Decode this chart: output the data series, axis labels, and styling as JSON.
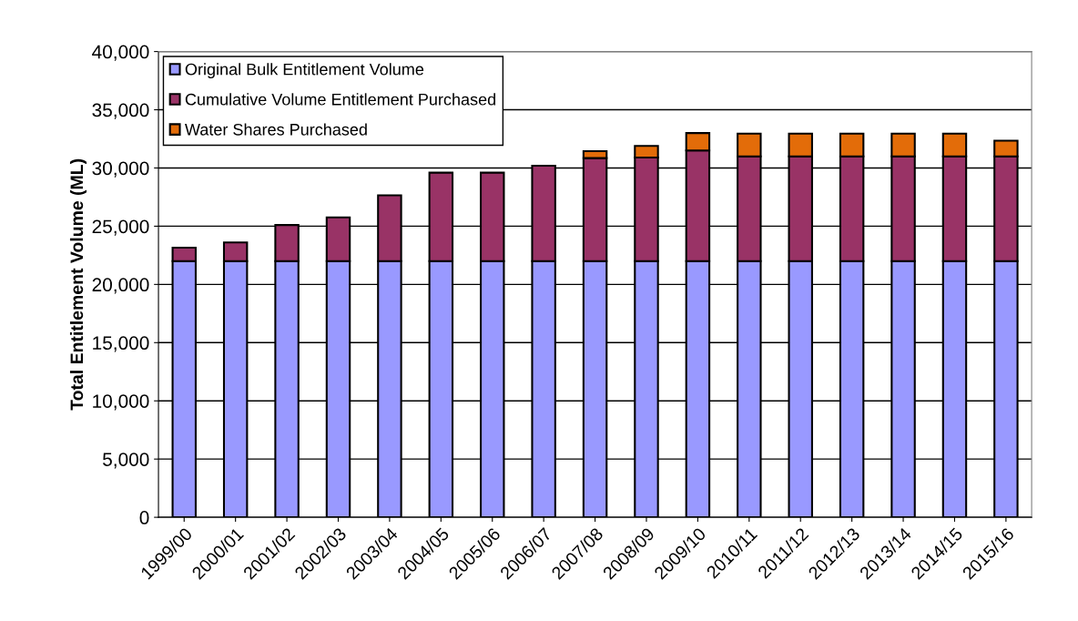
{
  "chart_data": {
    "type": "bar",
    "stacked": true,
    "ylabel": "Total Entitlement Volume (ML)",
    "categories": [
      "1999/00",
      "2000/01",
      "2001/02",
      "2002/03",
      "2003/04",
      "2004/05",
      "2005/06",
      "2006/07",
      "2007/08",
      "2008/09",
      "2009/10",
      "2010/11",
      "2011/12",
      "2012/13",
      "2013/14",
      "2014/15",
      "2015/16"
    ],
    "series": [
      {
        "name": "Original Bulk Entitlement Volume",
        "color": "#9999ff",
        "values": [
          22000,
          22000,
          22000,
          22000,
          22000,
          22000,
          22000,
          22000,
          22000,
          22000,
          22000,
          22000,
          22000,
          22000,
          22000,
          22000,
          22000
        ]
      },
      {
        "name": "Cumulative Volume Entitlement Purchased",
        "color": "#993366",
        "values": [
          1150,
          1600,
          3100,
          3750,
          5650,
          7600,
          7600,
          8200,
          8850,
          8900,
          9500,
          9000,
          9000,
          9000,
          9000,
          9000,
          9000
        ]
      },
      {
        "name": "Water Shares Purchased",
        "color": "#e36c09",
        "values": [
          0,
          0,
          0,
          0,
          0,
          0,
          0,
          0,
          600,
          1000,
          1500,
          1950,
          1950,
          1950,
          1950,
          1950,
          1350
        ]
      }
    ],
    "ylim": [
      0,
      40000
    ],
    "yticks": [
      {
        "value": 0,
        "label": "0"
      },
      {
        "value": 5000,
        "label": "5,000"
      },
      {
        "value": 10000,
        "label": "10,000"
      },
      {
        "value": 15000,
        "label": "15,000"
      },
      {
        "value": 20000,
        "label": "20,000"
      },
      {
        "value": 25000,
        "label": "25,000"
      },
      {
        "value": 30000,
        "label": "30,000"
      },
      {
        "value": 35000,
        "label": "35,000"
      },
      {
        "value": 40000,
        "label": "40,000"
      }
    ],
    "grid": "y",
    "legend": "top left"
  }
}
